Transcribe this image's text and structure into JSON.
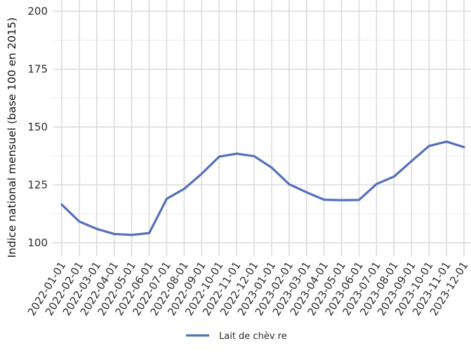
{
  "chart_data": {
    "type": "line",
    "title": "",
    "xlabel": "",
    "ylabel": "Indice national mensuel (base 100 en 2015)",
    "ylim": [
      100,
      200
    ],
    "yticks": [
      100,
      125,
      150,
      175,
      200
    ],
    "grid": true,
    "legend_position": "bottom",
    "x": [
      "2022-01-01",
      "2022-02-01",
      "2022-03-01",
      "2022-04-01",
      "2022-05-01",
      "2022-06-01",
      "2022-07-01",
      "2022-08-01",
      "2022-09-01",
      "2022-10-01",
      "2022-11-01",
      "2022-12-01",
      "2023-01-01",
      "2023-02-01",
      "2023-03-01",
      "2023-04-01",
      "2023-05-01",
      "2023-06-01",
      "2023-07-01",
      "2023-08-01",
      "2023-09-01",
      "2023-10-01",
      "2023-11-01",
      "2023-12-01"
    ],
    "series": [
      {
        "name": "Lait de chèv re",
        "color": "#5470b8",
        "values": [
          116.5,
          109.2,
          106.0,
          103.8,
          103.4,
          104.2,
          119.0,
          123.3,
          129.8,
          137.2,
          138.5,
          137.4,
          132.5,
          125.3,
          121.8,
          118.6,
          118.4,
          118.5,
          125.4,
          128.6,
          135.3,
          141.8,
          143.7,
          141.3
        ]
      }
    ]
  }
}
